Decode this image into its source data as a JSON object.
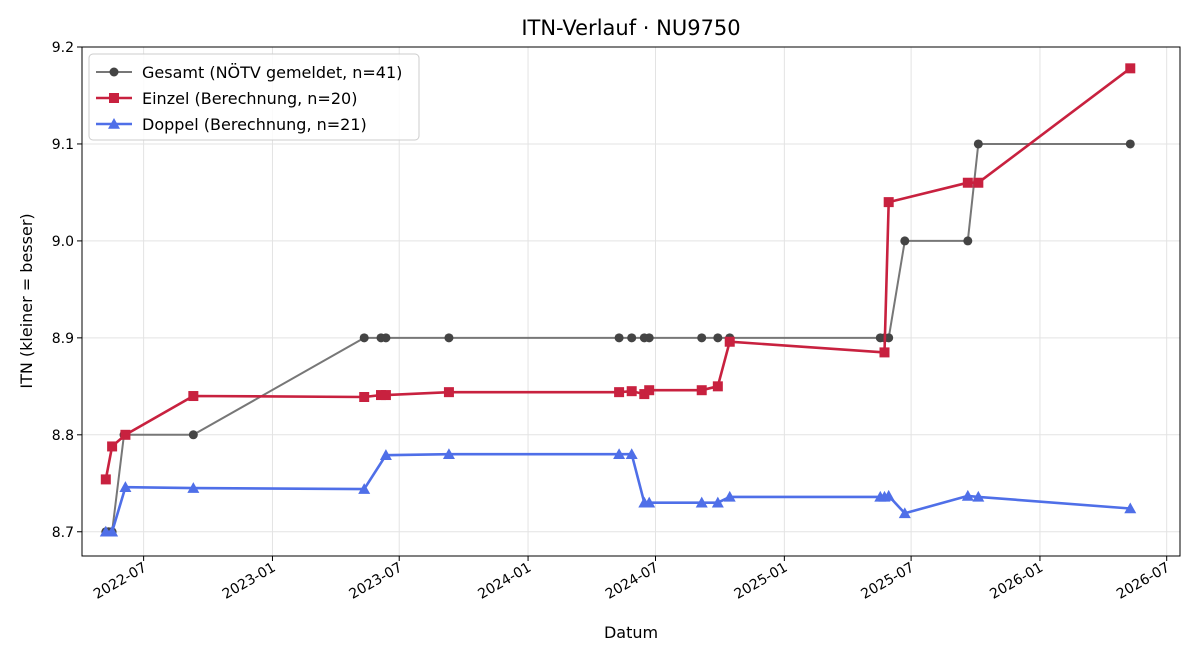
{
  "chart_data": {
    "type": "line",
    "title": "ITN-Verlauf · NU9750",
    "xlabel": "Datum",
    "ylabel": "ITN  (kleiner = besser)",
    "xlim": [
      "2022-04-04",
      "2026-07-20"
    ],
    "ylim": [
      8.675,
      9.2
    ],
    "x_ticks": [
      "2022-07",
      "2023-01",
      "2023-07",
      "2024-01",
      "2024-07",
      "2025-01",
      "2025-07",
      "2026-01",
      "2026-07"
    ],
    "y_ticks": [
      8.7,
      8.8,
      8.9,
      9.0,
      9.1,
      9.2
    ],
    "y_tick_labels": [
      "8.7",
      "8.8",
      "8.9",
      "9.0",
      "9.1",
      "9.2"
    ],
    "grid": true,
    "legend_position": "top-left",
    "series": [
      {
        "name": "Gesamt (NÖTV gemeldet, n=41)",
        "color": "#777777",
        "marker_color": "#444444",
        "marker": "circle",
        "points": [
          [
            "2022-05-08",
            8.7
          ],
          [
            "2022-05-12",
            8.7
          ],
          [
            "2022-05-17",
            8.7
          ],
          [
            "2022-06-03",
            8.8
          ],
          [
            "2022-09-10",
            8.8
          ],
          [
            "2023-05-12",
            8.9
          ],
          [
            "2023-06-05",
            8.9
          ],
          [
            "2023-06-12",
            8.9
          ],
          [
            "2023-09-10",
            8.9
          ],
          [
            "2024-05-10",
            8.9
          ],
          [
            "2024-05-28",
            8.9
          ],
          [
            "2024-06-15",
            8.9
          ],
          [
            "2024-06-22",
            8.9
          ],
          [
            "2024-09-05",
            8.9
          ],
          [
            "2024-09-28",
            8.9
          ],
          [
            "2024-10-15",
            8.9
          ],
          [
            "2025-05-18",
            8.9
          ],
          [
            "2025-05-24",
            8.9
          ],
          [
            "2025-05-30",
            8.9
          ],
          [
            "2025-06-22",
            9.0
          ],
          [
            "2025-09-20",
            9.0
          ],
          [
            "2025-10-05",
            9.1
          ],
          [
            "2026-05-10",
            9.1
          ]
        ]
      },
      {
        "name": "Einzel (Berechnung, n=20)",
        "color": "#c8213f",
        "marker_color": "#c8213f",
        "marker": "square",
        "points": [
          [
            "2022-05-08",
            8.754
          ],
          [
            "2022-05-17",
            8.788
          ],
          [
            "2022-06-05",
            8.8
          ],
          [
            "2022-09-10",
            8.84
          ],
          [
            "2023-05-12",
            8.839
          ],
          [
            "2023-06-05",
            8.841
          ],
          [
            "2023-06-12",
            8.841
          ],
          [
            "2023-09-10",
            8.844
          ],
          [
            "2024-05-10",
            8.844
          ],
          [
            "2024-05-28",
            8.845
          ],
          [
            "2024-06-15",
            8.842
          ],
          [
            "2024-06-22",
            8.846
          ],
          [
            "2024-09-05",
            8.846
          ],
          [
            "2024-09-28",
            8.85
          ],
          [
            "2024-10-15",
            8.896
          ],
          [
            "2025-05-24",
            8.885
          ],
          [
            "2025-05-30",
            9.04
          ],
          [
            "2025-09-20",
            9.06
          ],
          [
            "2025-10-05",
            9.06
          ],
          [
            "2026-05-10",
            9.178
          ]
        ]
      },
      {
        "name": "Doppel (Berechnung, n=21)",
        "color": "#4f6fe8",
        "marker_color": "#4f6fe8",
        "marker": "triangle",
        "points": [
          [
            "2022-05-08",
            8.7
          ],
          [
            "2022-05-17",
            8.7
          ],
          [
            "2022-06-05",
            8.746
          ],
          [
            "2022-09-10",
            8.745
          ],
          [
            "2023-05-12",
            8.744
          ],
          [
            "2023-06-12",
            8.779
          ],
          [
            "2023-09-10",
            8.78
          ],
          [
            "2024-05-10",
            8.78
          ],
          [
            "2024-05-28",
            8.78
          ],
          [
            "2024-06-15",
            8.73
          ],
          [
            "2024-06-22",
            8.73
          ],
          [
            "2024-09-05",
            8.73
          ],
          [
            "2024-09-28",
            8.73
          ],
          [
            "2024-10-15",
            8.736
          ],
          [
            "2025-05-18",
            8.736
          ],
          [
            "2025-05-24",
            8.736
          ],
          [
            "2025-05-30",
            8.737
          ],
          [
            "2025-06-22",
            8.719
          ],
          [
            "2025-09-20",
            8.737
          ],
          [
            "2025-10-05",
            8.736
          ],
          [
            "2026-05-10",
            8.724
          ]
        ]
      }
    ]
  }
}
